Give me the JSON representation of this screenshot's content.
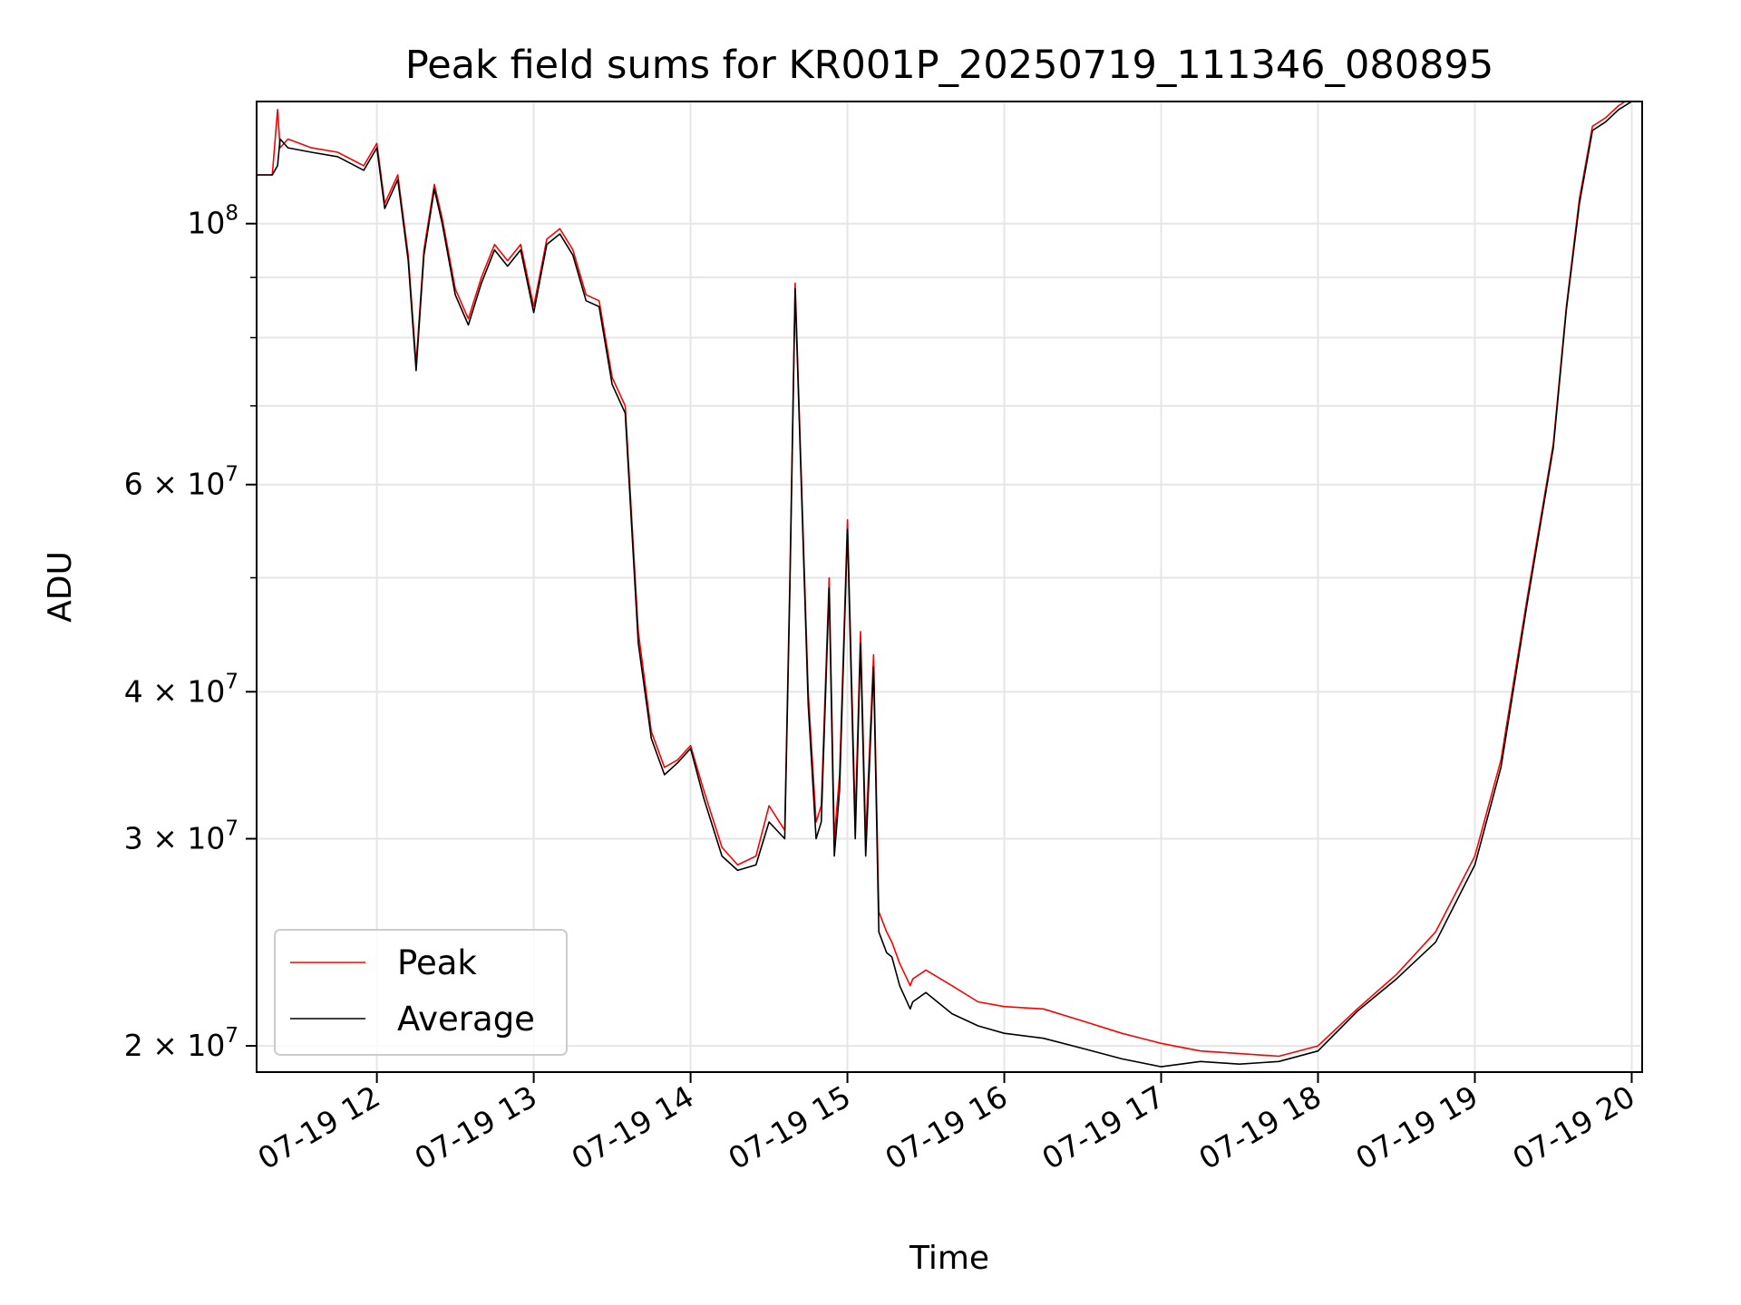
{
  "chart_data": {
    "type": "line",
    "title": "Peak field sums for KR001P_20250719_111346_080895",
    "xlabel": "Time",
    "ylabel": "ADU",
    "yscale": "log",
    "ylim": [
      19000000,
      127000000
    ],
    "xlim": [
      "2025-07-19 11:14",
      "2025-07-19 20:04"
    ],
    "grid": true,
    "legend": "lower-left",
    "x_ticks": [
      {
        "value": "2025-07-19 12:00",
        "label": "07-19 12"
      },
      {
        "value": "2025-07-19 13:00",
        "label": "07-19 13"
      },
      {
        "value": "2025-07-19 14:00",
        "label": "07-19 14"
      },
      {
        "value": "2025-07-19 15:00",
        "label": "07-19 15"
      },
      {
        "value": "2025-07-19 16:00",
        "label": "07-19 16"
      },
      {
        "value": "2025-07-19 17:00",
        "label": "07-19 17"
      },
      {
        "value": "2025-07-19 18:00",
        "label": "07-19 18"
      },
      {
        "value": "2025-07-19 19:00",
        "label": "07-19 19"
      },
      {
        "value": "2025-07-19 20:00",
        "label": "07-19 20"
      }
    ],
    "y_ticks": [
      {
        "value": 20000000,
        "mantissa": "2",
        "exp": "7"
      },
      {
        "value": 30000000,
        "mantissa": "3",
        "exp": "7"
      },
      {
        "value": 40000000,
        "mantissa": "4",
        "exp": "7"
      },
      {
        "value": 60000000,
        "mantissa": "6",
        "exp": "7"
      },
      {
        "value": 100000000,
        "mantissa": "",
        "exp": "8"
      }
    ],
    "y_minor_ticks": [
      50000000,
      70000000,
      80000000,
      90000000
    ],
    "series": [
      {
        "name": "Peak",
        "color": "#ff0000",
        "x": [
          "2025-07-19 11:14",
          "2025-07-19 11:20",
          "2025-07-19 11:22",
          "2025-07-19 11:23",
          "2025-07-19 11:26",
          "2025-07-19 11:35",
          "2025-07-19 11:45",
          "2025-07-19 11:55",
          "2025-07-19 12:00",
          "2025-07-19 12:03",
          "2025-07-19 12:08",
          "2025-07-19 12:12",
          "2025-07-19 12:15",
          "2025-07-19 12:18",
          "2025-07-19 12:22",
          "2025-07-19 12:25",
          "2025-07-19 12:30",
          "2025-07-19 12:35",
          "2025-07-19 12:40",
          "2025-07-19 12:45",
          "2025-07-19 12:50",
          "2025-07-19 12:55",
          "2025-07-19 13:00",
          "2025-07-19 13:05",
          "2025-07-19 13:10",
          "2025-07-19 13:15",
          "2025-07-19 13:20",
          "2025-07-19 13:25",
          "2025-07-19 13:30",
          "2025-07-19 13:35",
          "2025-07-19 13:40",
          "2025-07-19 13:45",
          "2025-07-19 13:50",
          "2025-07-19 13:55",
          "2025-07-19 14:00",
          "2025-07-19 14:05",
          "2025-07-19 14:12",
          "2025-07-19 14:18",
          "2025-07-19 14:25",
          "2025-07-19 14:30",
          "2025-07-19 14:36",
          "2025-07-19 14:38",
          "2025-07-19 14:40",
          "2025-07-19 14:45",
          "2025-07-19 14:48",
          "2025-07-19 14:50",
          "2025-07-19 14:53",
          "2025-07-19 14:55",
          "2025-07-19 14:57",
          "2025-07-19 15:00",
          "2025-07-19 15:03",
          "2025-07-19 15:05",
          "2025-07-19 15:07",
          "2025-07-19 15:10",
          "2025-07-19 15:12",
          "2025-07-19 15:15",
          "2025-07-19 15:17",
          "2025-07-19 15:20",
          "2025-07-19 15:22",
          "2025-07-19 15:24",
          "2025-07-19 15:25",
          "2025-07-19 15:30",
          "2025-07-19 15:40",
          "2025-07-19 15:50",
          "2025-07-19 16:00",
          "2025-07-19 16:15",
          "2025-07-19 16:30",
          "2025-07-19 16:45",
          "2025-07-19 17:00",
          "2025-07-19 17:15",
          "2025-07-19 17:30",
          "2025-07-19 17:45",
          "2025-07-19 18:00",
          "2025-07-19 18:15",
          "2025-07-19 18:30",
          "2025-07-19 18:45",
          "2025-07-19 19:00",
          "2025-07-19 19:10",
          "2025-07-19 19:20",
          "2025-07-19 19:30",
          "2025-07-19 19:35",
          "2025-07-19 19:40",
          "2025-07-19 19:45",
          "2025-07-19 19:50",
          "2025-07-19 19:55",
          "2025-07-19 20:00",
          "2025-07-19 20:04"
        ],
        "values": [
          110000000,
          110000000,
          125000000,
          116000000,
          118000000,
          116000000,
          115000000,
          112000000,
          117000000,
          104000000,
          110000000,
          94000000,
          76000000,
          95000000,
          108000000,
          101000000,
          88000000,
          83000000,
          90000000,
          96000000,
          93000000,
          96000000,
          85000000,
          97000000,
          99000000,
          95000000,
          87000000,
          86000000,
          74000000,
          70000000,
          45000000,
          37000000,
          34500000,
          35000000,
          36000000,
          33000000,
          29500000,
          28500000,
          29000000,
          32000000,
          30500000,
          50000000,
          89000000,
          40000000,
          31000000,
          32000000,
          50000000,
          30000000,
          34000000,
          56000000,
          31000000,
          45000000,
          30000000,
          43000000,
          26000000,
          25000000,
          24500000,
          23500000,
          23000000,
          22500000,
          22800000,
          23200000,
          22500000,
          21800000,
          21600000,
          21500000,
          21000000,
          20500000,
          20100000,
          19800000,
          19700000,
          19600000,
          20000000,
          21500000,
          23000000,
          25000000,
          29000000,
          35000000,
          48000000,
          65000000,
          85000000,
          105000000,
          121000000,
          123000000,
          126000000,
          128000000,
          128000000
        ]
      },
      {
        "name": "Average",
        "color": "#000000",
        "x": [
          "2025-07-19 11:14",
          "2025-07-19 11:20",
          "2025-07-19 11:22",
          "2025-07-19 11:23",
          "2025-07-19 11:26",
          "2025-07-19 11:35",
          "2025-07-19 11:45",
          "2025-07-19 11:55",
          "2025-07-19 12:00",
          "2025-07-19 12:03",
          "2025-07-19 12:08",
          "2025-07-19 12:12",
          "2025-07-19 12:15",
          "2025-07-19 12:18",
          "2025-07-19 12:22",
          "2025-07-19 12:25",
          "2025-07-19 12:30",
          "2025-07-19 12:35",
          "2025-07-19 12:40",
          "2025-07-19 12:45",
          "2025-07-19 12:50",
          "2025-07-19 12:55",
          "2025-07-19 13:00",
          "2025-07-19 13:05",
          "2025-07-19 13:10",
          "2025-07-19 13:15",
          "2025-07-19 13:20",
          "2025-07-19 13:25",
          "2025-07-19 13:30",
          "2025-07-19 13:35",
          "2025-07-19 13:40",
          "2025-07-19 13:45",
          "2025-07-19 13:50",
          "2025-07-19 13:55",
          "2025-07-19 14:00",
          "2025-07-19 14:05",
          "2025-07-19 14:12",
          "2025-07-19 14:18",
          "2025-07-19 14:25",
          "2025-07-19 14:30",
          "2025-07-19 14:36",
          "2025-07-19 14:38",
          "2025-07-19 14:40",
          "2025-07-19 14:45",
          "2025-07-19 14:48",
          "2025-07-19 14:50",
          "2025-07-19 14:53",
          "2025-07-19 14:55",
          "2025-07-19 14:57",
          "2025-07-19 15:00",
          "2025-07-19 15:03",
          "2025-07-19 15:05",
          "2025-07-19 15:07",
          "2025-07-19 15:10",
          "2025-07-19 15:12",
          "2025-07-19 15:15",
          "2025-07-19 15:17",
          "2025-07-19 15:20",
          "2025-07-19 15:22",
          "2025-07-19 15:24",
          "2025-07-19 15:25",
          "2025-07-19 15:30",
          "2025-07-19 15:40",
          "2025-07-19 15:50",
          "2025-07-19 16:00",
          "2025-07-19 16:15",
          "2025-07-19 16:30",
          "2025-07-19 16:45",
          "2025-07-19 17:00",
          "2025-07-19 17:15",
          "2025-07-19 17:30",
          "2025-07-19 17:45",
          "2025-07-19 18:00",
          "2025-07-19 18:15",
          "2025-07-19 18:30",
          "2025-07-19 18:45",
          "2025-07-19 19:00",
          "2025-07-19 19:10",
          "2025-07-19 19:20",
          "2025-07-19 19:30",
          "2025-07-19 19:35",
          "2025-07-19 19:40",
          "2025-07-19 19:45",
          "2025-07-19 19:50",
          "2025-07-19 19:55",
          "2025-07-19 20:00",
          "2025-07-19 20:04"
        ],
        "values": [
          110000000,
          110000000,
          112000000,
          118000000,
          116000000,
          115000000,
          114000000,
          111000000,
          116000000,
          103000000,
          109000000,
          93000000,
          75000000,
          94000000,
          107000000,
          100000000,
          87000000,
          82000000,
          89000000,
          95000000,
          92000000,
          95000000,
          84000000,
          96000000,
          98000000,
          94000000,
          86000000,
          85000000,
          73000000,
          69000000,
          44000000,
          36500000,
          34000000,
          34800000,
          35800000,
          32500000,
          29000000,
          28200000,
          28500000,
          31000000,
          30000000,
          49000000,
          88000000,
          39000000,
          30000000,
          31000000,
          49000000,
          29000000,
          33000000,
          55000000,
          30000000,
          44000000,
          29000000,
          42000000,
          25000000,
          24000000,
          23800000,
          22500000,
          22000000,
          21500000,
          21800000,
          22200000,
          21300000,
          20800000,
          20500000,
          20300000,
          19900000,
          19500000,
          19200000,
          19400000,
          19300000,
          19400000,
          19800000,
          21400000,
          22800000,
          24500000,
          28500000,
          34500000,
          47500000,
          64500000,
          84500000,
          104000000,
          120000000,
          122000000,
          125000000,
          127000000,
          127000000
        ]
      }
    ]
  }
}
